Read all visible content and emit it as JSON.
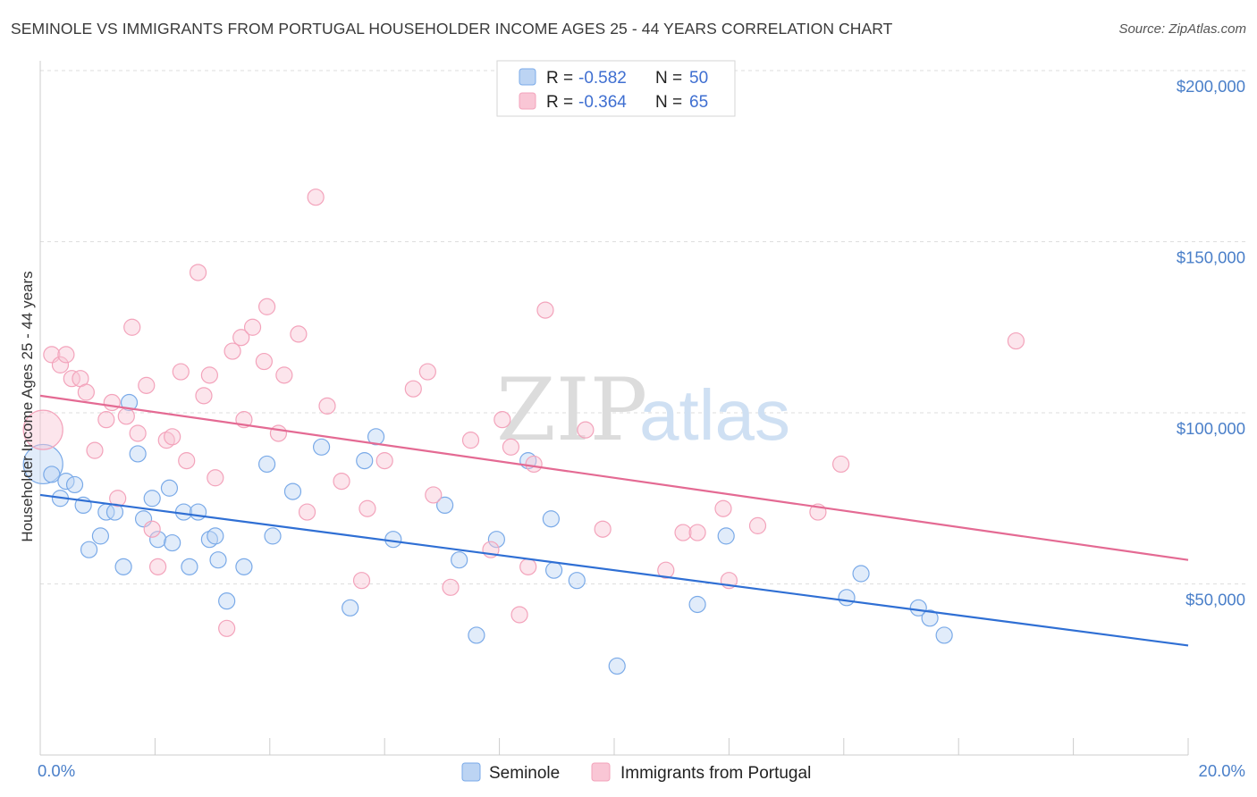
{
  "title": "SEMINOLE VS IMMIGRANTS FROM PORTUGAL HOUSEHOLDER INCOME AGES 25 - 44 YEARS CORRELATION CHART",
  "source": "Source: ZipAtlas.com",
  "watermark": {
    "zip": "ZIP",
    "atlas": "atlas"
  },
  "legend_top": [
    {
      "r_label": "R = ",
      "r_value": "-0.582",
      "n_label": "N = ",
      "n_value": "50"
    },
    {
      "r_label": "R = ",
      "r_value": "-0.364",
      "n_label": "N = ",
      "n_value": "65"
    }
  ],
  "chart_data": {
    "type": "scatter",
    "title": "SEMINOLE VS IMMIGRANTS FROM PORTUGAL HOUSEHOLDER INCOME AGES 25 - 44 YEARS CORRELATION CHART",
    "xlabel": "",
    "ylabel": "Householder Income Ages 25 - 44 years",
    "xlim": [
      0,
      20
    ],
    "ylim": [
      0,
      210000
    ],
    "x_tick_labels": [
      "0.0%",
      "20.0%"
    ],
    "y_ticks": [
      50000,
      100000,
      150000,
      200000
    ],
    "y_tick_labels": [
      "$50,000",
      "$100,000",
      "$150,000",
      "$200,000"
    ],
    "grid": true,
    "legend_position": "top-center",
    "series": [
      {
        "name": "Seminole",
        "color": "#7aaae8",
        "line_color": "#2f6fd4",
        "r": -0.582,
        "n": 50,
        "trend": {
          "x": [
            0,
            20
          ],
          "y": [
            76000,
            32000
          ]
        },
        "points": [
          {
            "x": 0.05,
            "y": 85000,
            "big": true
          },
          {
            "x": 0.2,
            "y": 82000
          },
          {
            "x": 0.35,
            "y": 75000
          },
          {
            "x": 0.45,
            "y": 80000
          },
          {
            "x": 0.6,
            "y": 79000
          },
          {
            "x": 0.75,
            "y": 73000
          },
          {
            "x": 0.85,
            "y": 60000
          },
          {
            "x": 1.05,
            "y": 64000
          },
          {
            "x": 1.15,
            "y": 71000
          },
          {
            "x": 1.3,
            "y": 71000
          },
          {
            "x": 1.45,
            "y": 55000
          },
          {
            "x": 1.55,
            "y": 103000
          },
          {
            "x": 1.7,
            "y": 88000
          },
          {
            "x": 1.8,
            "y": 69000
          },
          {
            "x": 1.95,
            "y": 75000
          },
          {
            "x": 2.05,
            "y": 63000
          },
          {
            "x": 2.25,
            "y": 78000
          },
          {
            "x": 2.3,
            "y": 62000
          },
          {
            "x": 2.5,
            "y": 71000
          },
          {
            "x": 2.6,
            "y": 55000
          },
          {
            "x": 2.75,
            "y": 71000
          },
          {
            "x": 2.95,
            "y": 63000
          },
          {
            "x": 3.05,
            "y": 64000
          },
          {
            "x": 3.1,
            "y": 57000
          },
          {
            "x": 3.25,
            "y": 45000
          },
          {
            "x": 3.55,
            "y": 55000
          },
          {
            "x": 3.95,
            "y": 85000
          },
          {
            "x": 4.05,
            "y": 64000
          },
          {
            "x": 4.4,
            "y": 77000
          },
          {
            "x": 4.9,
            "y": 90000
          },
          {
            "x": 5.4,
            "y": 43000
          },
          {
            "x": 5.65,
            "y": 86000
          },
          {
            "x": 5.85,
            "y": 93000
          },
          {
            "x": 6.15,
            "y": 63000
          },
          {
            "x": 7.05,
            "y": 73000
          },
          {
            "x": 7.3,
            "y": 57000
          },
          {
            "x": 7.6,
            "y": 35000
          },
          {
            "x": 7.95,
            "y": 63000
          },
          {
            "x": 8.5,
            "y": 86000
          },
          {
            "x": 8.9,
            "y": 69000
          },
          {
            "x": 8.95,
            "y": 54000
          },
          {
            "x": 9.35,
            "y": 51000
          },
          {
            "x": 10.05,
            "y": 26000
          },
          {
            "x": 11.45,
            "y": 44000
          },
          {
            "x": 11.95,
            "y": 64000
          },
          {
            "x": 14.05,
            "y": 46000
          },
          {
            "x": 14.3,
            "y": 53000
          },
          {
            "x": 15.3,
            "y": 43000
          },
          {
            "x": 15.5,
            "y": 40000
          },
          {
            "x": 15.75,
            "y": 35000
          }
        ]
      },
      {
        "name": "Immigrants from Portugal",
        "color": "#f3a3bb",
        "line_color": "#e46a93",
        "r": -0.364,
        "n": 65,
        "trend": {
          "x": [
            0,
            20
          ],
          "y": [
            105000,
            57000
          ]
        },
        "points": [
          {
            "x": 0.05,
            "y": 95000,
            "big": true
          },
          {
            "x": 0.2,
            "y": 117000
          },
          {
            "x": 0.35,
            "y": 114000
          },
          {
            "x": 0.45,
            "y": 117000
          },
          {
            "x": 0.55,
            "y": 110000
          },
          {
            "x": 0.7,
            "y": 110000
          },
          {
            "x": 0.8,
            "y": 106000
          },
          {
            "x": 0.95,
            "y": 89000
          },
          {
            "x": 1.15,
            "y": 98000
          },
          {
            "x": 1.25,
            "y": 103000
          },
          {
            "x": 1.35,
            "y": 75000
          },
          {
            "x": 1.5,
            "y": 99000
          },
          {
            "x": 1.6,
            "y": 125000
          },
          {
            "x": 1.7,
            "y": 94000
          },
          {
            "x": 1.85,
            "y": 108000
          },
          {
            "x": 1.95,
            "y": 66000
          },
          {
            "x": 2.05,
            "y": 55000
          },
          {
            "x": 2.2,
            "y": 92000
          },
          {
            "x": 2.3,
            "y": 93000
          },
          {
            "x": 2.45,
            "y": 112000
          },
          {
            "x": 2.55,
            "y": 86000
          },
          {
            "x": 2.75,
            "y": 141000
          },
          {
            "x": 2.85,
            "y": 105000
          },
          {
            "x": 2.95,
            "y": 111000
          },
          {
            "x": 3.05,
            "y": 81000
          },
          {
            "x": 3.25,
            "y": 37000
          },
          {
            "x": 3.35,
            "y": 118000
          },
          {
            "x": 3.5,
            "y": 122000
          },
          {
            "x": 3.55,
            "y": 98000
          },
          {
            "x": 3.7,
            "y": 125000
          },
          {
            "x": 3.9,
            "y": 115000
          },
          {
            "x": 3.95,
            "y": 131000
          },
          {
            "x": 4.15,
            "y": 94000
          },
          {
            "x": 4.25,
            "y": 111000
          },
          {
            "x": 4.5,
            "y": 123000
          },
          {
            "x": 4.65,
            "y": 71000
          },
          {
            "x": 4.8,
            "y": 163000
          },
          {
            "x": 5.0,
            "y": 102000
          },
          {
            "x": 5.25,
            "y": 80000
          },
          {
            "x": 5.6,
            "y": 51000
          },
          {
            "x": 5.7,
            "y": 72000
          },
          {
            "x": 6.0,
            "y": 86000
          },
          {
            "x": 6.5,
            "y": 107000
          },
          {
            "x": 6.75,
            "y": 112000
          },
          {
            "x": 6.85,
            "y": 76000
          },
          {
            "x": 7.15,
            "y": 49000
          },
          {
            "x": 7.5,
            "y": 92000
          },
          {
            "x": 7.85,
            "y": 60000
          },
          {
            "x": 8.05,
            "y": 98000
          },
          {
            "x": 8.2,
            "y": 90000
          },
          {
            "x": 8.35,
            "y": 41000
          },
          {
            "x": 8.5,
            "y": 55000
          },
          {
            "x": 8.6,
            "y": 85000
          },
          {
            "x": 8.8,
            "y": 130000
          },
          {
            "x": 9.5,
            "y": 95000
          },
          {
            "x": 9.8,
            "y": 66000
          },
          {
            "x": 10.9,
            "y": 54000
          },
          {
            "x": 11.2,
            "y": 65000
          },
          {
            "x": 11.45,
            "y": 65000
          },
          {
            "x": 11.9,
            "y": 72000
          },
          {
            "x": 12.0,
            "y": 51000
          },
          {
            "x": 12.5,
            "y": 67000
          },
          {
            "x": 13.55,
            "y": 71000
          },
          {
            "x": 13.95,
            "y": 85000
          },
          {
            "x": 17.0,
            "y": 121000
          }
        ]
      }
    ]
  }
}
